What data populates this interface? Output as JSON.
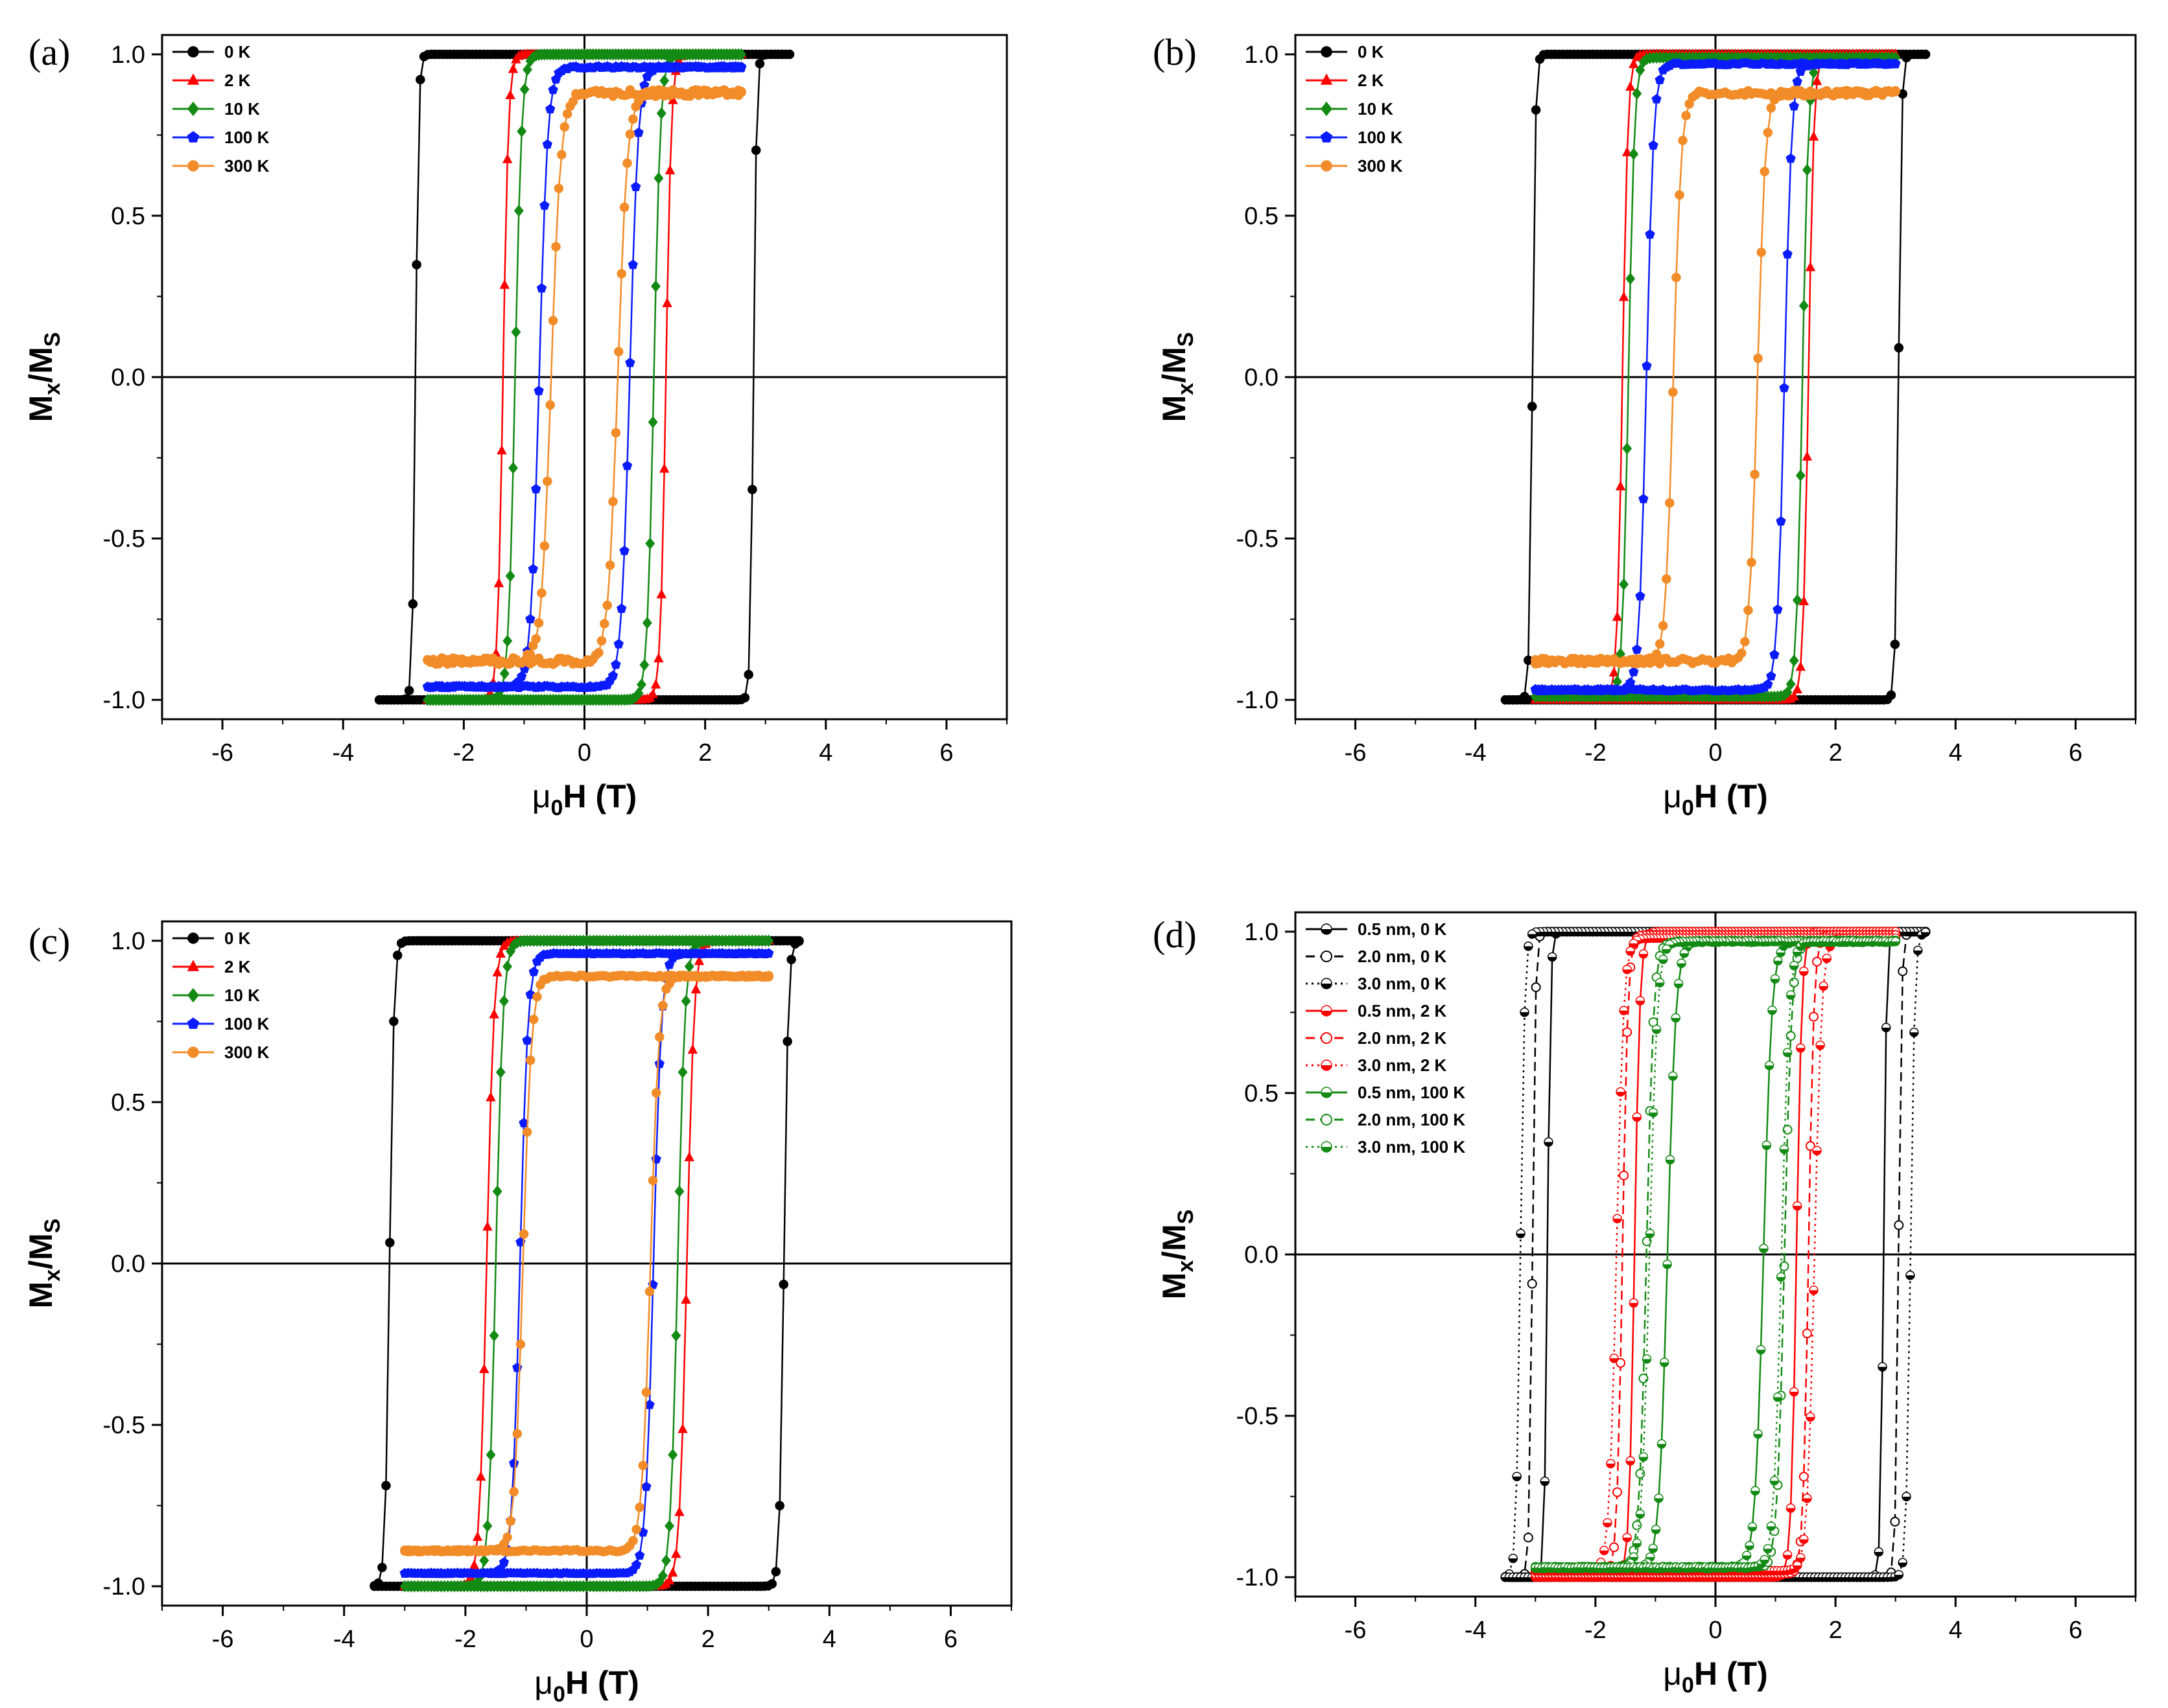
{
  "chart_data": [
    {
      "panel": "(a)",
      "type": "line",
      "xlabel_main": "μ",
      "xlabel_sub": "0",
      "xlabel_rest": "H (T)",
      "ylabel_main": "M",
      "ylabel_sub": "x",
      "ylabel_mid": "/M",
      "ylabel_sub2": "S",
      "xlim": [
        -7,
        7
      ],
      "ylim": [
        -1.06,
        1.06
      ],
      "xticks": [
        -6,
        -4,
        -2,
        0,
        2,
        4,
        6
      ],
      "yticks": [
        -1.0,
        -0.5,
        0.0,
        0.5,
        1.0
      ],
      "xtick_labels": [
        "-6",
        "-4",
        "-2",
        "0",
        "2",
        "4",
        "6"
      ],
      "ytick_labels": [
        "-1.0",
        "-0.5",
        "0.0",
        "0.5",
        "1.0"
      ],
      "series": [
        {
          "name": "0 K",
          "color": "#000000",
          "marker": "circle",
          "fill": "solid",
          "dash": "solid",
          "hc": 2.8,
          "w": 0.05,
          "ms": 1.0,
          "hmax": 3.4,
          "noise": 0
        },
        {
          "name": "2 K",
          "color": "#ff0000",
          "marker": "triangle",
          "fill": "solid",
          "dash": "solid",
          "hc": 1.35,
          "w": 0.09,
          "ms": 1.0,
          "hmax": 2.6,
          "noise": 0
        },
        {
          "name": "10 K",
          "color": "#138a13",
          "marker": "diamond",
          "fill": "solid",
          "dash": "solid",
          "hc": 1.15,
          "w": 0.11,
          "ms": 1.0,
          "hmax": 2.6,
          "noise": 0
        },
        {
          "name": "100 K",
          "color": "#0a1bff",
          "marker": "pentagon",
          "fill": "solid",
          "dash": "solid",
          "hc": 0.75,
          "w": 0.14,
          "ms": 0.96,
          "hmax": 2.6,
          "noise": 0.01
        },
        {
          "name": "300 K",
          "color": "#f28c28",
          "marker": "circle",
          "fill": "solid",
          "dash": "solid",
          "hc": 0.55,
          "w": 0.16,
          "ms": 0.88,
          "hmax": 2.6,
          "noise": 0.03
        }
      ]
    },
    {
      "panel": "(b)",
      "type": "line",
      "xlabel_main": "μ",
      "xlabel_sub": "0",
      "xlabel_rest": "H (T)",
      "ylabel_main": "M",
      "ylabel_sub": "x",
      "ylabel_mid": "/M",
      "ylabel_sub2": "S",
      "xlim": [
        -7,
        7
      ],
      "ylim": [
        -1.06,
        1.06
      ],
      "xticks": [
        -6,
        -4,
        -2,
        0,
        2,
        4,
        6
      ],
      "yticks": [
        -1.0,
        -0.5,
        0.0,
        0.5,
        1.0
      ],
      "xtick_labels": [
        "-6",
        "-4",
        "-2",
        "0",
        "2",
        "4",
        "6"
      ],
      "ytick_labels": [
        "-1.0",
        "-0.5",
        "0.0",
        "0.5",
        "1.0"
      ],
      "series": [
        {
          "name": "0 K",
          "color": "#000000",
          "marker": "circle",
          "fill": "solid",
          "dash": "solid",
          "hc": 3.05,
          "w": 0.05,
          "ms": 1.0,
          "hmax": 3.5,
          "noise": 0
        },
        {
          "name": "2 K",
          "color": "#ff0000",
          "marker": "triangle",
          "fill": "solid",
          "dash": "solid",
          "hc": 1.55,
          "w": 0.09,
          "ms": 1.0,
          "hmax": 3.0,
          "noise": 0
        },
        {
          "name": "10 K",
          "color": "#138a13",
          "marker": "diamond",
          "fill": "solid",
          "dash": "solid",
          "hc": 1.45,
          "w": 0.1,
          "ms": 0.99,
          "hmax": 3.0,
          "noise": 0
        },
        {
          "name": "100 K",
          "color": "#0a1bff",
          "marker": "pentagon",
          "fill": "solid",
          "dash": "solid",
          "hc": 1.15,
          "w": 0.12,
          "ms": 0.97,
          "hmax": 3.0,
          "noise": 0.01
        },
        {
          "name": "300 K",
          "color": "#f28c28",
          "marker": "circle",
          "fill": "solid",
          "dash": "solid",
          "hc": 0.7,
          "w": 0.13,
          "ms": 0.88,
          "hmax": 3.0,
          "noise": 0.025
        }
      ]
    },
    {
      "panel": "(c)",
      "type": "line",
      "xlabel_main": "μ",
      "xlabel_sub": "0",
      "xlabel_rest": "H (T)",
      "ylabel_main": "M",
      "ylabel_sub": "x",
      "ylabel_mid": "/M",
      "ylabel_sub2": "S",
      "xlim": [
        -7,
        7
      ],
      "ylim": [
        -1.06,
        1.06
      ],
      "xticks": [
        -6,
        -4,
        -2,
        0,
        2,
        4,
        6
      ],
      "yticks": [
        -1.0,
        -0.5,
        0.0,
        0.5,
        1.0
      ],
      "xtick_labels": [
        "-6",
        "-4",
        "-2",
        "0",
        "2",
        "4",
        "6"
      ],
      "ytick_labels": [
        "-1.0",
        "-0.5",
        "0.0",
        "0.5",
        "1.0"
      ],
      "series": [
        {
          "name": "0 K",
          "color": "#000000",
          "marker": "circle",
          "fill": "solid",
          "dash": "solid",
          "hc": 3.25,
          "w": 0.07,
          "ms": 1.0,
          "hmax": 3.5,
          "noise": 0
        },
        {
          "name": "2 K",
          "color": "#ff0000",
          "marker": "triangle",
          "fill": "solid",
          "dash": "solid",
          "hc": 1.65,
          "w": 0.12,
          "ms": 1.0,
          "hmax": 3.0,
          "noise": 0
        },
        {
          "name": "10 K",
          "color": "#138a13",
          "marker": "diamond",
          "fill": "solid",
          "dash": "solid",
          "hc": 1.5,
          "w": 0.12,
          "ms": 1.0,
          "hmax": 3.0,
          "noise": 0
        },
        {
          "name": "100 K",
          "color": "#0a1bff",
          "marker": "pentagon",
          "fill": "solid",
          "dash": "solid",
          "hc": 1.1,
          "w": 0.13,
          "ms": 0.96,
          "hmax": 3.0,
          "noise": 0.005
        },
        {
          "name": "300 K",
          "color": "#f28c28",
          "marker": "circle",
          "fill": "solid",
          "dash": "solid",
          "hc": 1.05,
          "w": 0.14,
          "ms": 0.89,
          "hmax": 3.0,
          "noise": 0.01
        }
      ]
    },
    {
      "panel": "(d)",
      "type": "line",
      "xlabel_main": "μ",
      "xlabel_sub": "0",
      "xlabel_rest": "H (T)",
      "ylabel_main": "M",
      "ylabel_sub": "x",
      "ylabel_mid": "/M",
      "ylabel_sub2": "S",
      "xlim": [
        -7,
        7
      ],
      "ylim": [
        -1.06,
        1.06
      ],
      "xticks": [
        -6,
        -4,
        -2,
        0,
        2,
        4,
        6
      ],
      "yticks": [
        -1.0,
        -0.5,
        0.0,
        0.5,
        1.0
      ],
      "xtick_labels": [
        "-6",
        "-4",
        "-2",
        "0",
        "2",
        "4",
        "6"
      ],
      "ytick_labels": [
        "-1.0",
        "-0.5",
        "0.0",
        "0.5",
        "1.0"
      ],
      "series": [
        {
          "name": "0.5 nm, 0 K",
          "color": "#000000",
          "marker": "circle",
          "fill": "half",
          "dash": "solid",
          "hc": 2.8,
          "w": 0.05,
          "ms": 1.0,
          "hmax": 3.4,
          "noise": 0
        },
        {
          "name": "2.0 nm, 0 K",
          "color": "#000000",
          "marker": "circle",
          "fill": "open",
          "dash": "dash",
          "hc": 3.05,
          "w": 0.05,
          "ms": 1.0,
          "hmax": 3.5,
          "noise": 0
        },
        {
          "name": "3.0 nm, 0 K",
          "color": "#000000",
          "marker": "circle",
          "fill": "half",
          "dash": "dot",
          "hc": 3.25,
          "w": 0.07,
          "ms": 1.0,
          "hmax": 3.5,
          "noise": 0
        },
        {
          "name": "0.5 nm, 2 K",
          "color": "#ff0000",
          "marker": "circle",
          "fill": "half",
          "dash": "solid",
          "hc": 1.35,
          "w": 0.09,
          "ms": 1.0,
          "hmax": 3.0,
          "noise": 0
        },
        {
          "name": "2.0 nm, 2 K",
          "color": "#ff0000",
          "marker": "circle",
          "fill": "open",
          "dash": "dash",
          "hc": 1.55,
          "w": 0.09,
          "ms": 0.99,
          "hmax": 3.0,
          "noise": 0
        },
        {
          "name": "3.0 nm, 2 K",
          "color": "#ff0000",
          "marker": "circle",
          "fill": "half",
          "dash": "dot",
          "hc": 1.65,
          "w": 0.12,
          "ms": 0.98,
          "hmax": 3.0,
          "noise": 0
        },
        {
          "name": "0.5 nm, 100 K",
          "color": "#138a13",
          "marker": "circle",
          "fill": "half",
          "dash": "solid",
          "hc": 0.8,
          "w": 0.14,
          "ms": 0.97,
          "hmax": 2.6,
          "noise": 0.01
        },
        {
          "name": "2.0 nm, 100 K",
          "color": "#138a13",
          "marker": "circle",
          "fill": "open",
          "dash": "dash",
          "hc": 1.15,
          "w": 0.12,
          "ms": 0.97,
          "hmax": 3.0,
          "noise": 0.01
        },
        {
          "name": "3.0 nm, 100 K",
          "color": "#138a13",
          "marker": "circle",
          "fill": "half",
          "dash": "dot",
          "hc": 1.1,
          "w": 0.13,
          "ms": 0.97,
          "hmax": 3.0,
          "noise": 0.005
        }
      ]
    }
  ]
}
